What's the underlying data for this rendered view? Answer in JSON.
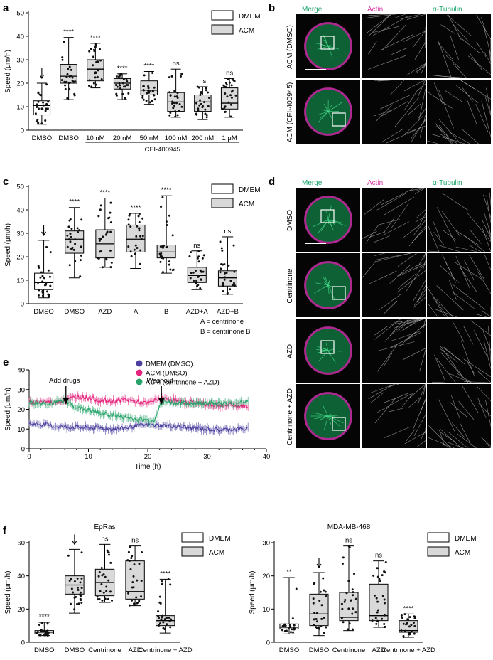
{
  "panels": {
    "a": {
      "letter": "a",
      "ylabel": "Speed (μm/h)",
      "ylim": [
        0,
        50
      ],
      "yticks": [
        0,
        10,
        20,
        30,
        40,
        50
      ],
      "legend": [
        "DMEM",
        "ACM"
      ],
      "group_label": "CFI-400945",
      "categories": [
        "DMSO",
        "DMSO",
        "10 nM",
        "20 nM",
        "50 nM",
        "100 nM",
        "200 nM",
        "1 μM"
      ],
      "medium": [
        "DMEM",
        "ACM",
        "ACM",
        "ACM",
        "ACM",
        "ACM",
        "ACM",
        "ACM"
      ],
      "stats": [
        {
          "min": 2.5,
          "q1": 6.5,
          "median": 10.5,
          "q3": 12.5,
          "max": 20,
          "sig": "↓"
        },
        {
          "min": 13,
          "q1": 20,
          "median": 23,
          "q3": 28,
          "max": 39.5,
          "sig": "****"
        },
        {
          "min": 18,
          "q1": 21,
          "median": 26,
          "q3": 30,
          "max": 37,
          "sig": "****"
        },
        {
          "min": 13,
          "q1": 17.5,
          "median": 20,
          "q3": 22,
          "max": 24,
          "sig": "****"
        },
        {
          "min": 11,
          "q1": 15,
          "median": 17,
          "q3": 21,
          "max": 25,
          "sig": "****"
        },
        {
          "min": 5.5,
          "q1": 8,
          "median": 12,
          "q3": 16,
          "max": 26,
          "sig": "ns"
        },
        {
          "min": 4.5,
          "q1": 8,
          "median": 12,
          "q3": 15,
          "max": 18.5,
          "sig": "ns"
        },
        {
          "min": 5.5,
          "q1": 9,
          "median": 11.5,
          "q3": 18,
          "max": 22,
          "sig": "ns"
        }
      ]
    },
    "c": {
      "letter": "c",
      "ylabel": "Speed (μm/h)",
      "ylim": [
        0,
        50
      ],
      "yticks": [
        0,
        10,
        20,
        30,
        40,
        50
      ],
      "legend": [
        "DMEM",
        "ACM"
      ],
      "categories": [
        "DMSO",
        "DMSO",
        "AZD",
        "A",
        "B",
        "AZD+A",
        "AZD+B"
      ],
      "medium": [
        "DMEM",
        "ACM",
        "ACM",
        "ACM",
        "ACM",
        "ACM",
        "ACM"
      ],
      "notes": [
        "A = centrinone",
        "B = centrinone B"
      ],
      "stats": [
        {
          "min": 2.5,
          "q1": 6,
          "median": 9,
          "q3": 13,
          "max": 27,
          "sig": "↓"
        },
        {
          "min": 11,
          "q1": 21.5,
          "median": 27.5,
          "q3": 31,
          "max": 41,
          "sig": "****"
        },
        {
          "min": 15.5,
          "q1": 19.5,
          "median": 25.5,
          "q3": 31.5,
          "max": 45,
          "sig": "****"
        },
        {
          "min": 15,
          "q1": 22,
          "median": 27.5,
          "q3": 33.5,
          "max": 38.5,
          "sig": "****"
        },
        {
          "min": 13,
          "q1": 19.5,
          "median": 22,
          "q3": 25,
          "max": 46,
          "sig": "****"
        },
        {
          "min": 6,
          "q1": 9,
          "median": 12,
          "q3": 15.5,
          "max": 22.5,
          "sig": "ns"
        },
        {
          "min": 4,
          "q1": 7.5,
          "median": 11,
          "q3": 14,
          "max": 28.5,
          "sig": "ns"
        }
      ]
    },
    "e": {
      "letter": "e",
      "ylabel": "Speed (μm/h)",
      "xlabel": "Time (h)",
      "ylim": [
        0,
        40
      ],
      "xlim": [
        0,
        40
      ],
      "yticks": [
        0,
        10,
        20,
        30,
        40
      ],
      "xticks": [
        0,
        10,
        20,
        30,
        40
      ],
      "annotations": [
        {
          "text": "Add drugs",
          "x": 6.2
        },
        {
          "text": "Washout",
          "x": 22.3
        }
      ],
      "legend": [
        "DMEM (DMSO)",
        "ACM (DMSO)",
        "ACM (centrinone + AZD)"
      ]
    },
    "f1": {
      "letter": "f",
      "title": "EpRas",
      "ylabel": "Speed (μm/h)",
      "ylim": [
        0,
        60
      ],
      "yticks": [
        0,
        20,
        40,
        60
      ],
      "legend": [
        "DMEM",
        "ACM"
      ],
      "categories": [
        "DMSO",
        "DMSO",
        "Centrinone",
        "AZD",
        "Centrinone + AZD"
      ],
      "medium": [
        "DMEM",
        "ACM",
        "ACM",
        "ACM",
        "ACM"
      ],
      "stats": [
        {
          "min": 4,
          "q1": 5,
          "median": 6,
          "q3": 7,
          "max": 12,
          "sig": "****"
        },
        {
          "min": 17.5,
          "q1": 29,
          "median": 34.5,
          "q3": 40,
          "max": 56,
          "sig": "↓"
        },
        {
          "min": 24,
          "q1": 28,
          "median": 36,
          "q3": 44,
          "max": 59,
          "sig": "ns"
        },
        {
          "min": 22,
          "q1": 26,
          "median": 30.5,
          "q3": 49,
          "max": 58,
          "sig": "ns"
        },
        {
          "min": 5.5,
          "q1": 10,
          "median": 13,
          "q3": 16,
          "max": 38,
          "sig": "****"
        }
      ]
    },
    "f2": {
      "title": "MDA-MB-468",
      "ylabel": "Speed (μm/h)",
      "ylim": [
        0,
        30
      ],
      "yticks": [
        0,
        10,
        20,
        30
      ],
      "legend": [
        "DMEM",
        "ACM"
      ],
      "categories": [
        "DMSO",
        "DMSO",
        "Centrinone",
        "AZD",
        "Centrinone + AZD"
      ],
      "medium": [
        "DMEM",
        "ACM",
        "ACM",
        "ACM",
        "ACM"
      ],
      "stats": [
        {
          "min": 2.5,
          "q1": 4,
          "median": 4.5,
          "q3": 5.5,
          "max": 19.5,
          "sig": "**"
        },
        {
          "min": 2,
          "q1": 5,
          "median": 8.5,
          "q3": 14.5,
          "max": 21,
          "sig": "↓"
        },
        {
          "min": 3.5,
          "q1": 6.5,
          "median": 7.5,
          "q3": 15,
          "max": 29,
          "sig": "ns"
        },
        {
          "min": 4.5,
          "q1": 6.5,
          "median": 8,
          "q3": 17.5,
          "max": 24.5,
          "sig": "ns"
        },
        {
          "min": 1.5,
          "q1": 3,
          "median": 3.5,
          "q3": 6.5,
          "max": 8.5,
          "sig": "****"
        }
      ]
    }
  },
  "microscopy": {
    "b": {
      "letter": "b",
      "columns": [
        "Merge",
        "Actin",
        "α-Tubulin"
      ],
      "rows": [
        "ACM (DMSO)",
        "ACM (CFI-400945)"
      ]
    },
    "d": {
      "letter": "d",
      "columns": [
        "Merge",
        "Actin",
        "α-Tubulin"
      ],
      "rows": [
        "DMSO",
        "Centrinone",
        "AZD",
        "Centrinone + AZD"
      ]
    }
  },
  "chart_data": [
    {
      "type": "box",
      "panel": "a",
      "ylabel": "Speed (μm/h)",
      "ylim": [
        0,
        50
      ],
      "categories": [
        "DMSO",
        "DMSO",
        "10 nM",
        "20 nM",
        "50 nM",
        "100 nM",
        "200 nM",
        "1 μM"
      ],
      "median": [
        10.5,
        23,
        26,
        20,
        17,
        12,
        12,
        11.5
      ]
    },
    {
      "type": "box",
      "panel": "c",
      "ylabel": "Speed (μm/h)",
      "ylim": [
        0,
        50
      ],
      "categories": [
        "DMSO",
        "DMSO",
        "AZD",
        "A",
        "B",
        "AZD+A",
        "AZD+B"
      ],
      "median": [
        9,
        27.5,
        25.5,
        27.5,
        22,
        12,
        11
      ]
    },
    {
      "type": "line",
      "panel": "e",
      "xlabel": "Time (h)",
      "ylabel": "Speed (μm/h)",
      "xlim": [
        0,
        40
      ],
      "ylim": [
        0,
        40
      ],
      "series": [
        {
          "name": "DMEM (DMSO)",
          "color": "#4a3f9e",
          "x": [
            0,
            2,
            4,
            6,
            8,
            10,
            12,
            14,
            16,
            18,
            20,
            22,
            24,
            26,
            28,
            30,
            32,
            34,
            36
          ],
          "y": [
            12.5,
            12.5,
            11.5,
            11,
            11,
            10.5,
            10.5,
            10,
            10.5,
            11.5,
            12,
            12,
            11.5,
            11,
            10.5,
            10,
            9.5,
            10,
            10
          ]
        },
        {
          "name": "ACM (DMSO)",
          "color": "#e6237d",
          "x": [
            0,
            2,
            4,
            6,
            8,
            10,
            12,
            14,
            16,
            18,
            20,
            22,
            24,
            26,
            28,
            30,
            32,
            34,
            36
          ],
          "y": [
            23.5,
            24,
            23.5,
            24.5,
            26.5,
            26,
            24.5,
            24,
            25,
            24,
            23,
            25.5,
            25,
            23.5,
            23.5,
            22.5,
            22,
            22,
            21.5
          ]
        },
        {
          "name": "ACM (centrinone + AZD)",
          "color": "#27a36a",
          "x": [
            0,
            2,
            4,
            6,
            8,
            10,
            12,
            14,
            16,
            18,
            20,
            21,
            22,
            23,
            24,
            26,
            28,
            30,
            32,
            34,
            36
          ],
          "y": [
            23.5,
            23,
            23,
            24.5,
            21,
            19.5,
            18,
            17,
            16,
            15,
            14.5,
            14,
            22,
            24,
            23.5,
            23,
            23,
            23.5,
            23,
            23,
            24
          ]
        }
      ]
    },
    {
      "type": "box",
      "panel": "f",
      "title": "EpRas",
      "ylabel": "Speed (μm/h)",
      "ylim": [
        0,
        60
      ],
      "categories": [
        "DMSO",
        "DMSO",
        "Centrinone",
        "AZD",
        "Centrinone + AZD"
      ],
      "median": [
        6,
        34.5,
        36,
        30.5,
        13
      ]
    },
    {
      "type": "box",
      "panel": "f",
      "title": "MDA-MB-468",
      "ylabel": "Speed (μm/h)",
      "ylim": [
        0,
        30
      ],
      "categories": [
        "DMSO",
        "DMSO",
        "Centrinone",
        "AZD",
        "Centrinone + AZD"
      ],
      "median": [
        4.5,
        8.5,
        7.5,
        8,
        3.5
      ]
    }
  ],
  "colors": {
    "dmem": "#ffffff",
    "acm": "#d9d9d9",
    "dmem_dmso": "#4a3f9e",
    "acm_dmso": "#e6237d",
    "acm_centr_azd": "#27a36a",
    "merge_title": "#1aa36a",
    "actin_title": "#d63aa6",
    "tubulin_title": "#23a86e"
  }
}
